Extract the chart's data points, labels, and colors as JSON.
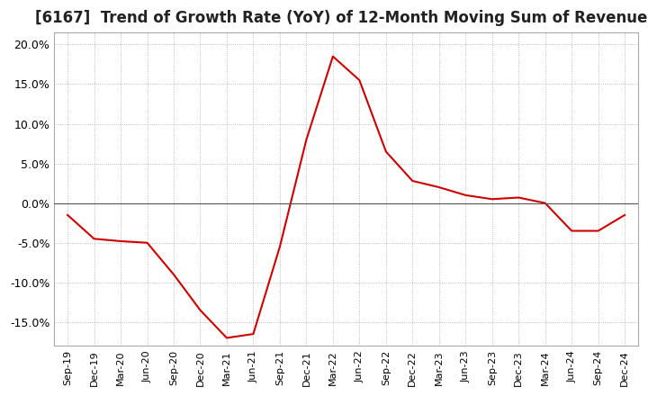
{
  "title": "[6167]  Trend of Growth Rate (YoY) of 12-Month Moving Sum of Revenues",
  "title_fontsize": 12,
  "line_color": "#cc0000",
  "background_color": "#ffffff",
  "grid_color": "#aaaaaa",
  "xlabels": [
    "Sep-19",
    "Dec-19",
    "Mar-20",
    "Jun-20",
    "Sep-20",
    "Dec-20",
    "Mar-21",
    "Jun-21",
    "Sep-21",
    "Dec-21",
    "Mar-22",
    "Jun-22",
    "Sep-22",
    "Dec-22",
    "Mar-23",
    "Jun-23",
    "Sep-23",
    "Dec-23",
    "Mar-24",
    "Jun-24",
    "Sep-24",
    "Dec-24"
  ],
  "values": [
    -1.5,
    -4.5,
    -4.8,
    -5.0,
    -9.0,
    -13.5,
    -17.0,
    -16.5,
    -5.5,
    8.0,
    18.5,
    15.5,
    6.5,
    2.8,
    2.0,
    1.0,
    0.5,
    0.7,
    0.0,
    -3.5,
    -3.5,
    -1.5
  ],
  "ylim": [
    -18.0,
    21.5
  ],
  "yticks": [
    -15.0,
    -10.0,
    -5.0,
    0.0,
    5.0,
    10.0,
    15.0,
    20.0
  ]
}
